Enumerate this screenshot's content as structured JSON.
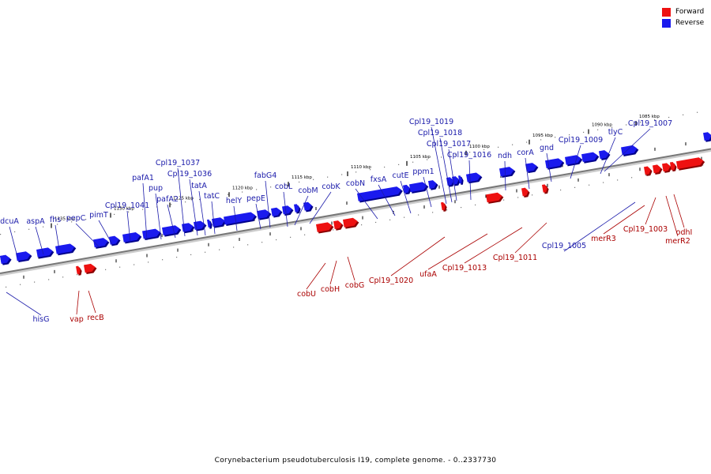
{
  "legend": {
    "forward_label": "Forward",
    "reverse_label": "Reverse",
    "forward_color": "#ee1111",
    "reverse_color": "#1a1aee"
  },
  "caption": "Corynebacterium pseudotuberculosis I19, complete genome. - 0..2337730",
  "colors": {
    "forward": "#ee1111",
    "reverse": "#1a1aee",
    "backbone": "#888888",
    "label_forward": "#aa0000",
    "label_reverse": "#1a1aaa"
  },
  "ticks": [
    {
      "label": "1085 kbp"
    },
    {
      "label": "1090 kbp"
    },
    {
      "label": "1095 kbp"
    },
    {
      "label": "1100 kbp"
    },
    {
      "label": "1105 kbp"
    },
    {
      "label": "1110 kbp"
    },
    {
      "label": "1115 kbp"
    },
    {
      "label": "1120 kbp"
    },
    {
      "label": "1125 kbp"
    },
    {
      "label": "1130 kbp"
    },
    {
      "label": "1135 kbp"
    }
  ],
  "reverse_genes": [
    {
      "name": "dcuA"
    },
    {
      "name": "aspA"
    },
    {
      "name": "fhs"
    },
    {
      "name": "pepC"
    },
    {
      "name": "pimT"
    },
    {
      "name": "Cpl19_1041"
    },
    {
      "name": "pafA1"
    },
    {
      "name": "pup"
    },
    {
      "name": "pafA2"
    },
    {
      "name": "Cpl19_1037"
    },
    {
      "name": "Cpl19_1036"
    },
    {
      "name": "tatA"
    },
    {
      "name": "tatC"
    },
    {
      "name": "helY"
    },
    {
      "name": "pepE"
    },
    {
      "name": "fabG4"
    },
    {
      "name": "cobL"
    },
    {
      "name": "cobM"
    },
    {
      "name": "cobK"
    },
    {
      "name": "cobN"
    },
    {
      "name": "fxsA"
    },
    {
      "name": "cutE"
    },
    {
      "name": "ppm1"
    },
    {
      "name": "Cpl19_1019"
    },
    {
      "name": "Cpl19_1018"
    },
    {
      "name": "Cpl19_1017"
    },
    {
      "name": "Cpl19_1016"
    },
    {
      "name": "ndh"
    },
    {
      "name": "corA"
    },
    {
      "name": "gnd"
    },
    {
      "name": "Cpl19_1009"
    },
    {
      "name": "tlyC"
    },
    {
      "name": "Cpl19_1007"
    },
    {
      "name": "hisG"
    },
    {
      "name": "Cpl19_1005"
    }
  ],
  "forward_genes": [
    {
      "name": "vap"
    },
    {
      "name": "recB"
    },
    {
      "name": "cobU"
    },
    {
      "name": "cobH"
    },
    {
      "name": "cobG"
    },
    {
      "name": "Cpl19_1020"
    },
    {
      "name": "ufaA"
    },
    {
      "name": "Cpl19_1013"
    },
    {
      "name": "Cpl19_1011"
    },
    {
      "name": "merR3"
    },
    {
      "name": "Cpl19_1003"
    },
    {
      "name": "merR2"
    },
    {
      "name": "odhI"
    }
  ]
}
